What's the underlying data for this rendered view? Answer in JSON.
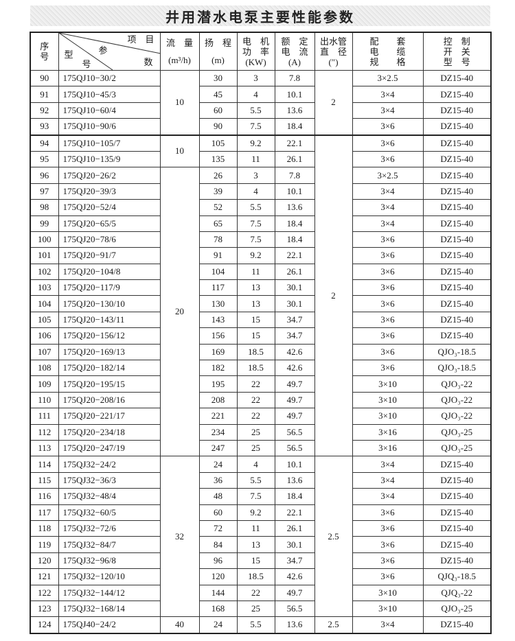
{
  "title": "井用潜水电泵主要性能参数",
  "header": {
    "no": [
      "序",
      "号"
    ],
    "diag": {
      "item": "项　目",
      "param": "参",
      "count": "数",
      "type": "型",
      "model": "号"
    },
    "flow": [
      "流　量",
      "(m³/h)"
    ],
    "head": [
      "扬　程",
      "(m)"
    ],
    "power": [
      "电　机",
      "功　率",
      "(KW)"
    ],
    "current": [
      "额　定",
      "电　流",
      "(A)"
    ],
    "outlet": [
      "出水管",
      "直　径",
      "(″)"
    ],
    "cable": [
      "配　　套",
      "电　　缆",
      "规　　格"
    ],
    "switch": [
      "控　制",
      "开　关",
      "型　号"
    ]
  },
  "flow_groups": [
    {
      "value": "10",
      "span": 4
    },
    {
      "value": "10",
      "span": 2
    },
    {
      "value": "20",
      "span": 18
    },
    {
      "value": "32",
      "span": 10
    },
    {
      "value": "40",
      "span": 1
    }
  ],
  "outlet_groups": [
    {
      "value": "2",
      "span": 4
    },
    {
      "value": "2",
      "span": 20
    },
    {
      "value": "2.5",
      "span": 10
    },
    {
      "value": "2.5",
      "span": 1
    }
  ],
  "rows": [
    {
      "no": "90",
      "model": "175QJ10−30/2",
      "head": "30",
      "power": "3",
      "current": "7.8",
      "cable": "3×2.5",
      "switch": "DZ15-40"
    },
    {
      "no": "91",
      "model": "175QJ10−45/3",
      "head": "45",
      "power": "4",
      "current": "10.1",
      "cable": "3×4",
      "switch": "DZ15-40"
    },
    {
      "no": "92",
      "model": "175QJ10−60/4",
      "head": "60",
      "power": "5.5",
      "current": "13.6",
      "cable": "3×4",
      "switch": "DZ15-40"
    },
    {
      "no": "93",
      "model": "175QJ10−90/6",
      "head": "90",
      "power": "7.5",
      "current": "18.4",
      "cable": "3×6",
      "switch": "DZ15-40"
    },
    {
      "no": "94",
      "model": "175QJ10−105/7",
      "head": "105",
      "power": "9.2",
      "current": "22.1",
      "cable": "3×6",
      "switch": "DZ15-40"
    },
    {
      "no": "95",
      "model": "175QJ10−135/9",
      "head": "135",
      "power": "11",
      "current": "26.1",
      "cable": "3×6",
      "switch": "DZ15-40"
    },
    {
      "no": "96",
      "model": "175QJ20−26/2",
      "head": "26",
      "power": "3",
      "current": "7.8",
      "cable": "3×2.5",
      "switch": "DZ15-40"
    },
    {
      "no": "97",
      "model": "175QJ20−39/3",
      "head": "39",
      "power": "4",
      "current": "10.1",
      "cable": "3×4",
      "switch": "DZ15-40"
    },
    {
      "no": "98",
      "model": "175QJ20−52/4",
      "head": "52",
      "power": "5.5",
      "current": "13.6",
      "cable": "3×4",
      "switch": "DZ15-40"
    },
    {
      "no": "99",
      "model": "175QJ20−65/5",
      "head": "65",
      "power": "7.5",
      "current": "18.4",
      "cable": "3×4",
      "switch": "DZ15-40"
    },
    {
      "no": "100",
      "model": "175QJ20−78/6",
      "head": "78",
      "power": "7.5",
      "current": "18.4",
      "cable": "3×6",
      "switch": "DZ15-40"
    },
    {
      "no": "101",
      "model": "175QJ20−91/7",
      "head": "91",
      "power": "9.2",
      "current": "22.1",
      "cable": "3×6",
      "switch": "DZ15-40"
    },
    {
      "no": "102",
      "model": "175QJ20−104/8",
      "head": "104",
      "power": "11",
      "current": "26.1",
      "cable": "3×6",
      "switch": "DZ15-40"
    },
    {
      "no": "103",
      "model": "175QJ20−117/9",
      "head": "117",
      "power": "13",
      "current": "30.1",
      "cable": "3×6",
      "switch": "DZ15-40"
    },
    {
      "no": "104",
      "model": "175QJ20−130/10",
      "head": "130",
      "power": "13",
      "current": "30.1",
      "cable": "3×6",
      "switch": "DZ15-40"
    },
    {
      "no": "105",
      "model": "175QJ20−143/11",
      "head": "143",
      "power": "15",
      "current": "34.7",
      "cable": "3×6",
      "switch": "DZ15-40"
    },
    {
      "no": "106",
      "model": "175QJ20−156/12",
      "head": "156",
      "power": "15",
      "current": "34.7",
      "cable": "3×6",
      "switch": "DZ15-40"
    },
    {
      "no": "107",
      "model": "175QJ20−169/13",
      "head": "169",
      "power": "18.5",
      "current": "42.6",
      "cable": "3×6",
      "switch": "QJO₃-18.5"
    },
    {
      "no": "108",
      "model": "175QJ20−182/14",
      "head": "182",
      "power": "18.5",
      "current": "42.6",
      "cable": "3×6",
      "switch": "QJO₃-18.5"
    },
    {
      "no": "109",
      "model": "175QJ20−195/15",
      "head": "195",
      "power": "22",
      "current": "49.7",
      "cable": "3×10",
      "switch": "QJO₃-22"
    },
    {
      "no": "110",
      "model": "175QJ20−208/16",
      "head": "208",
      "power": "22",
      "current": "49.7",
      "cable": "3×10",
      "switch": "QJO₃-22"
    },
    {
      "no": "111",
      "model": "175QJ20−221/17",
      "head": "221",
      "power": "22",
      "current": "49.7",
      "cable": "3×10",
      "switch": "QJO₃-22"
    },
    {
      "no": "112",
      "model": "175QJ20−234/18",
      "head": "234",
      "power": "25",
      "current": "56.5",
      "cable": "3×16",
      "switch": "QJO₃-25"
    },
    {
      "no": "113",
      "model": "175QJ20−247/19",
      "head": "247",
      "power": "25",
      "current": "56.5",
      "cable": "3×16",
      "switch": "QJO₃-25"
    },
    {
      "no": "114",
      "model": "175QJ32−24/2",
      "head": "24",
      "power": "4",
      "current": "10.1",
      "cable": "3×4",
      "switch": "DZ15-40"
    },
    {
      "no": "115",
      "model": "175QJ32−36/3",
      "head": "36",
      "power": "5.5",
      "current": "13.6",
      "cable": "3×4",
      "switch": "DZ15-40"
    },
    {
      "no": "116",
      "model": "175QJ32−48/4",
      "head": "48",
      "power": "7.5",
      "current": "18.4",
      "cable": "3×4",
      "switch": "DZ15-40"
    },
    {
      "no": "117",
      "model": "175QJ32−60/5",
      "head": "60",
      "power": "9.2",
      "current": "22.1",
      "cable": "3×6",
      "switch": "DZ15-40"
    },
    {
      "no": "118",
      "model": "175QJ32−72/6",
      "head": "72",
      "power": "11",
      "current": "26.1",
      "cable": "3×6",
      "switch": "DZ15-40"
    },
    {
      "no": "119",
      "model": "175QJ32−84/7",
      "head": "84",
      "power": "13",
      "current": "30.1",
      "cable": "3×6",
      "switch": "DZ15-40"
    },
    {
      "no": "120",
      "model": "175QJ32−96/8",
      "head": "96",
      "power": "15",
      "current": "34.7",
      "cable": "3×6",
      "switch": "DZ15-40"
    },
    {
      "no": "121",
      "model": "175QJ32−120/10",
      "head": "120",
      "power": "18.5",
      "current": "42.6",
      "cable": "3×6",
      "switch": "QJQ₃-18.5"
    },
    {
      "no": "122",
      "model": "175QJ32−144/12",
      "head": "144",
      "power": "22",
      "current": "49.7",
      "cable": "3×10",
      "switch": "QJQ₃-22"
    },
    {
      "no": "123",
      "model": "175QJ32−168/14",
      "head": "168",
      "power": "25",
      "current": "56.5",
      "cable": "3×10",
      "switch": "QJO₃-25"
    },
    {
      "no": "124",
      "model": "175QJ40−24/2",
      "head": "24",
      "power": "5.5",
      "current": "13.6",
      "cable": "3×4",
      "switch": "DZ15-40"
    }
  ]
}
